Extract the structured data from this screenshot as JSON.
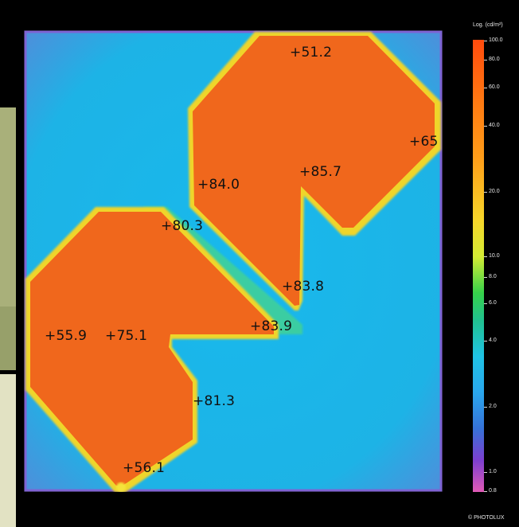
{
  "image": {
    "description_free": true
  },
  "colors": {
    "background": "#19b6e8",
    "background_edge": "#6a7bd6",
    "panel_fill": "#f0691c",
    "panel_edge_glow": "#f2dd2a",
    "gap_glow": "#3fd17a",
    "frame": "#000000"
  },
  "readings": [
    {
      "id": "r-51-2",
      "text": "+51.2"
    },
    {
      "id": "r-65",
      "text": "+65"
    },
    {
      "id": "r-85-7",
      "text": "+85.7"
    },
    {
      "id": "r-84-0",
      "text": "+84.0"
    },
    {
      "id": "r-80-3",
      "text": "+80.3"
    },
    {
      "id": "r-83-8",
      "text": "+83.8"
    },
    {
      "id": "r-83-9",
      "text": "+83.9"
    },
    {
      "id": "r-55-9",
      "text": "+55.9"
    },
    {
      "id": "r-75-1",
      "text": "+75.1"
    },
    {
      "id": "r-81-3",
      "text": "+81.3"
    },
    {
      "id": "r-56-1",
      "text": "+56.1"
    }
  ],
  "scale": {
    "title": "Log. (cd/m²)",
    "ticks": [
      "100.0",
      "80.0",
      "60.0",
      "40.0",
      "20.0",
      "10.0",
      "8.0",
      "6.0",
      "4.0",
      "2.0",
      "1.0",
      "0.8"
    ],
    "copyright": "© PHOTOLUX"
  }
}
